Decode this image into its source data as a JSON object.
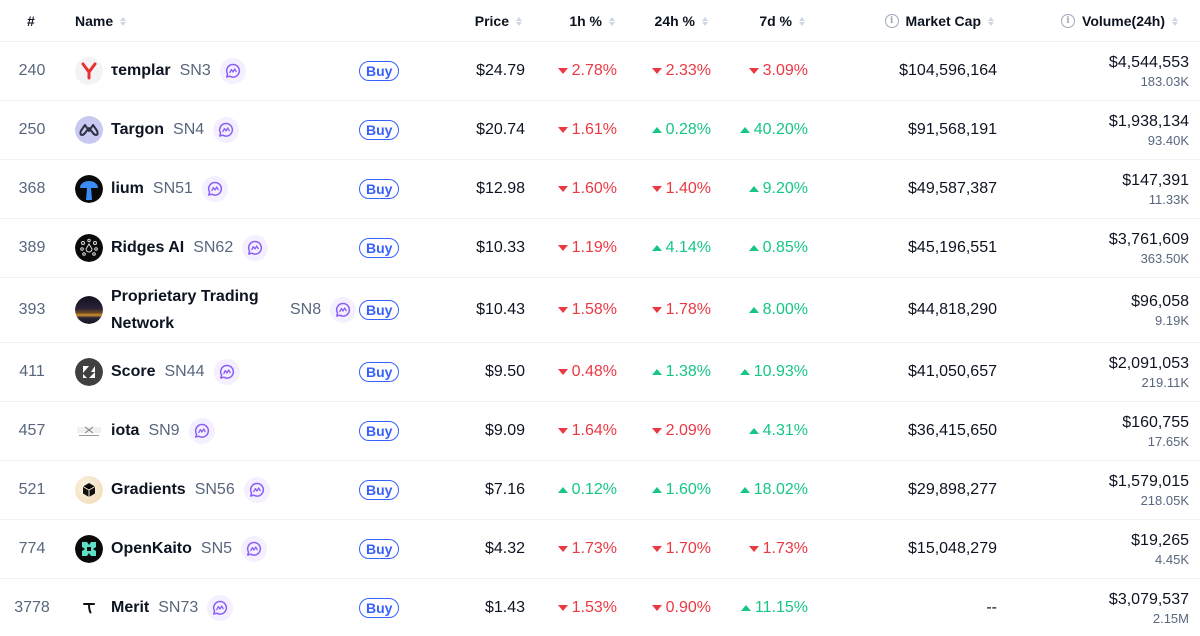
{
  "table": {
    "headers": {
      "rank": "#",
      "name": "Name",
      "price": "Price",
      "change_1h": "1h %",
      "change_24h": "24h %",
      "change_7d": "7d %",
      "market_cap": "Market Cap",
      "volume_24h": "Volume(24h)"
    },
    "buy_label": "Buy",
    "colors": {
      "up": "#16c784",
      "down": "#ea3943",
      "accent": "#3861fb",
      "chat": "#8b5cf6"
    },
    "rows": [
      {
        "rank": "240",
        "name": "τemplar",
        "ticker": "SN3",
        "logo": "templar-logo",
        "price": "$24.79",
        "change_1h": "2.78%",
        "dir_1h": "down",
        "change_24h": "2.33%",
        "dir_24h": "down",
        "change_7d": "3.09%",
        "dir_7d": "down",
        "market_cap": "$104,596,164",
        "volume_usd": "$4,544,553",
        "volume_token": "183.03K"
      },
      {
        "rank": "250",
        "name": "Targon",
        "ticker": "SN4",
        "logo": "targon-logo",
        "price": "$20.74",
        "change_1h": "1.61%",
        "dir_1h": "down",
        "change_24h": "0.28%",
        "dir_24h": "up",
        "change_7d": "40.20%",
        "dir_7d": "up",
        "market_cap": "$91,568,191",
        "volume_usd": "$1,938,134",
        "volume_token": "93.40K"
      },
      {
        "rank": "368",
        "name": "lium",
        "ticker": "SN51",
        "logo": "lium-logo",
        "price": "$12.98",
        "change_1h": "1.60%",
        "dir_1h": "down",
        "change_24h": "1.40%",
        "dir_24h": "down",
        "change_7d": "9.20%",
        "dir_7d": "up",
        "market_cap": "$49,587,387",
        "volume_usd": "$147,391",
        "volume_token": "11.33K"
      },
      {
        "rank": "389",
        "name": "Ridges AI",
        "ticker": "SN62",
        "logo": "ridges-logo",
        "price": "$10.33",
        "change_1h": "1.19%",
        "dir_1h": "down",
        "change_24h": "4.14%",
        "dir_24h": "up",
        "change_7d": "0.85%",
        "dir_7d": "up",
        "market_cap": "$45,196,551",
        "volume_usd": "$3,761,609",
        "volume_token": "363.50K"
      },
      {
        "rank": "393",
        "name": "Proprietary Trading Network",
        "ticker": "SN8",
        "logo": "ptn-logo",
        "price": "$10.43",
        "change_1h": "1.58%",
        "dir_1h": "down",
        "change_24h": "1.78%",
        "dir_24h": "down",
        "change_7d": "8.00%",
        "dir_7d": "up",
        "market_cap": "$44,818,290",
        "volume_usd": "$96,058",
        "volume_token": "9.19K"
      },
      {
        "rank": "411",
        "name": "Score",
        "ticker": "SN44",
        "logo": "score-logo",
        "price": "$9.50",
        "change_1h": "0.48%",
        "dir_1h": "down",
        "change_24h": "1.38%",
        "dir_24h": "up",
        "change_7d": "10.93%",
        "dir_7d": "up",
        "market_cap": "$41,050,657",
        "volume_usd": "$2,091,053",
        "volume_token": "219.11K"
      },
      {
        "rank": "457",
        "name": "iota",
        "ticker": "SN9",
        "logo": "iota-logo",
        "price": "$9.09",
        "change_1h": "1.64%",
        "dir_1h": "down",
        "change_24h": "2.09%",
        "dir_24h": "down",
        "change_7d": "4.31%",
        "dir_7d": "up",
        "market_cap": "$36,415,650",
        "volume_usd": "$160,755",
        "volume_token": "17.65K"
      },
      {
        "rank": "521",
        "name": "Gradients",
        "ticker": "SN56",
        "logo": "gradients-logo",
        "price": "$7.16",
        "change_1h": "0.12%",
        "dir_1h": "up",
        "change_24h": "1.60%",
        "dir_24h": "up",
        "change_7d": "18.02%",
        "dir_7d": "up",
        "market_cap": "$29,898,277",
        "volume_usd": "$1,579,015",
        "volume_token": "218.05K"
      },
      {
        "rank": "774",
        "name": "OpenKaito",
        "ticker": "SN5",
        "logo": "openkaito-logo",
        "price": "$4.32",
        "change_1h": "1.73%",
        "dir_1h": "down",
        "change_24h": "1.70%",
        "dir_24h": "down",
        "change_7d": "1.73%",
        "dir_7d": "down",
        "market_cap": "$15,048,279",
        "volume_usd": "$19,265",
        "volume_token": "4.45K"
      },
      {
        "rank": "3778",
        "name": "Merit",
        "ticker": "SN73",
        "logo": "merit-logo",
        "price": "$1.43",
        "change_1h": "1.53%",
        "dir_1h": "down",
        "change_24h": "0.90%",
        "dir_24h": "down",
        "change_7d": "11.15%",
        "dir_7d": "up",
        "market_cap": "--",
        "volume_usd": "$3,079,537",
        "volume_token": "2.15M"
      }
    ]
  }
}
